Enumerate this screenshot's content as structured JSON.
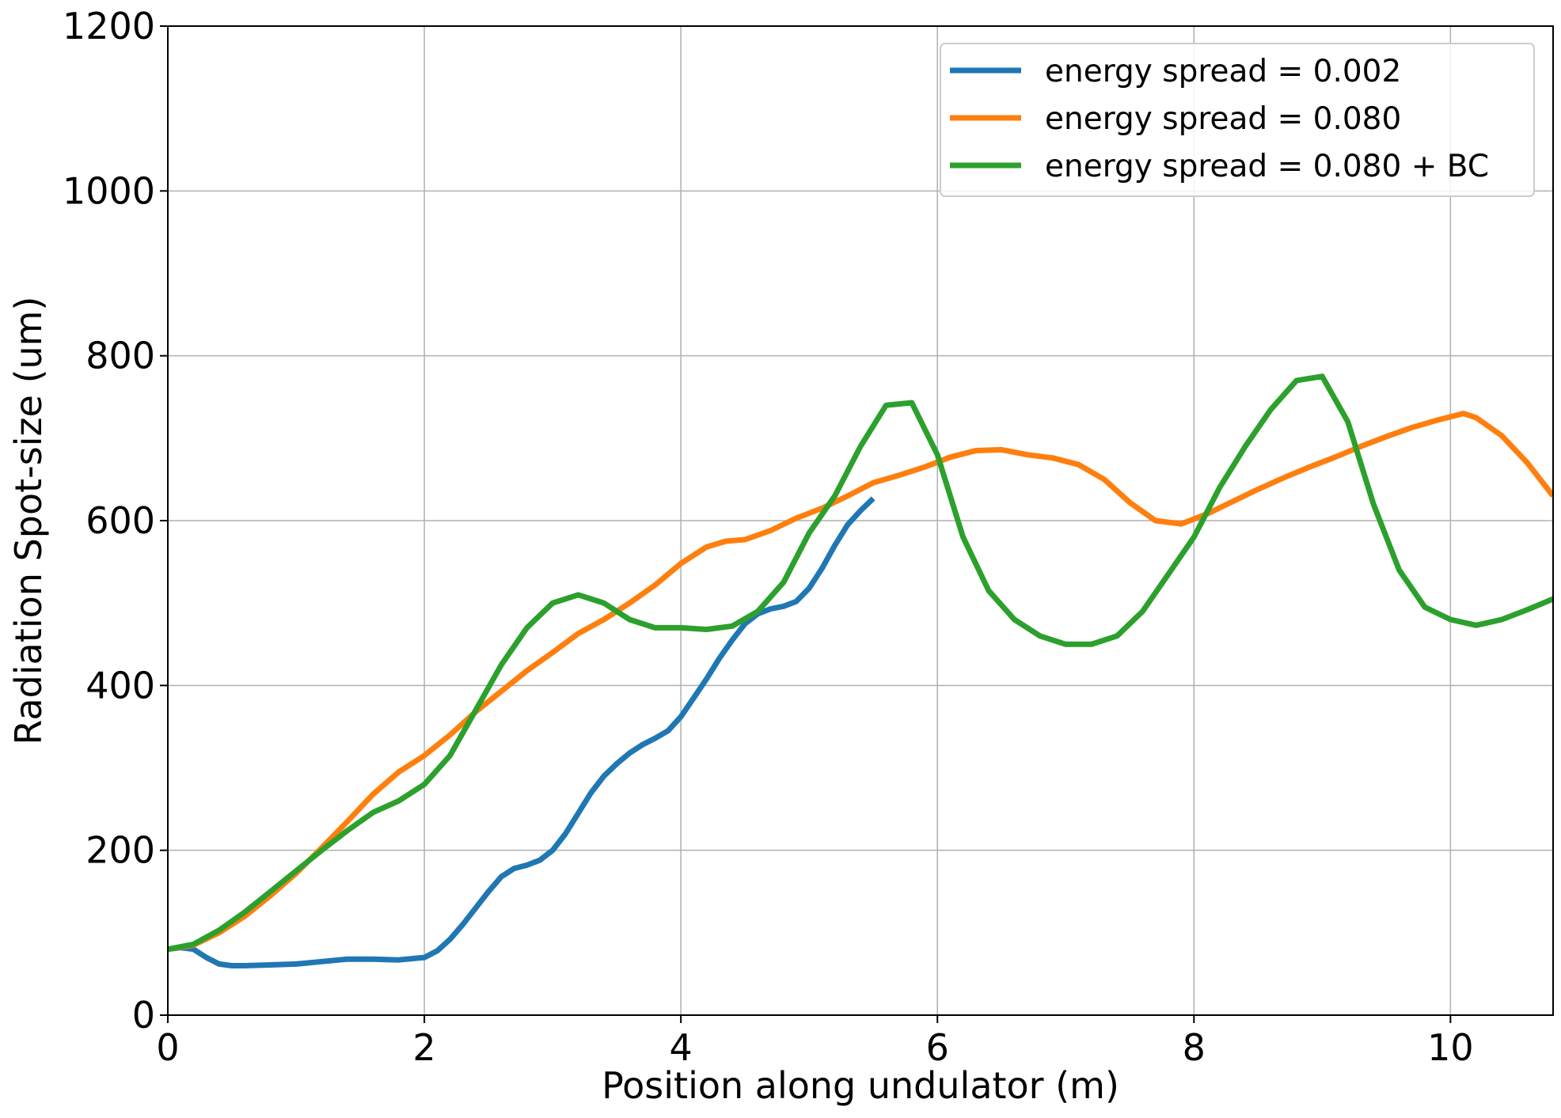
{
  "chart_data": {
    "type": "line",
    "title": "",
    "xlabel": "Position along undulator (m)",
    "ylabel": "Radiation Spot-size (um)",
    "xlim": [
      0,
      10.8
    ],
    "ylim": [
      0,
      1200
    ],
    "xticks": [
      0,
      2,
      4,
      6,
      8,
      10
    ],
    "yticks": [
      0,
      200,
      400,
      600,
      800,
      1000,
      1200
    ],
    "xtick_labels": [
      "0",
      "2",
      "4",
      "6",
      "8",
      "10"
    ],
    "ytick_labels": [
      "0",
      "200",
      "400",
      "600",
      "800",
      "1000",
      "1200"
    ],
    "grid": true,
    "legend_position": "top-right",
    "series": [
      {
        "name": "energy spread = 0.002",
        "color": "#1f77b4",
        "x": [
          0,
          0.1,
          0.2,
          0.3,
          0.4,
          0.5,
          0.6,
          0.8,
          1.0,
          1.2,
          1.4,
          1.6,
          1.8,
          2.0,
          2.1,
          2.2,
          2.3,
          2.4,
          2.5,
          2.6,
          2.7,
          2.8,
          2.9,
          3.0,
          3.1,
          3.2,
          3.3,
          3.4,
          3.5,
          3.6,
          3.7,
          3.8,
          3.9,
          4.0,
          4.1,
          4.2,
          4.3,
          4.4,
          4.5,
          4.6,
          4.7,
          4.8,
          4.9,
          5.0,
          5.1,
          5.2,
          5.3,
          5.4,
          5.5
        ],
        "y": [
          80,
          82,
          80,
          70,
          62,
          60,
          60,
          61,
          62,
          65,
          68,
          68,
          67,
          70,
          78,
          92,
          110,
          130,
          150,
          168,
          178,
          182,
          188,
          200,
          220,
          245,
          270,
          290,
          305,
          318,
          328,
          336,
          345,
          362,
          385,
          408,
          433,
          455,
          475,
          487,
          493,
          496,
          502,
          518,
          542,
          570,
          595,
          612,
          627
        ]
      },
      {
        "name": "energy spread = 0.080",
        "color": "#ff7f0e",
        "x": [
          0,
          0.2,
          0.4,
          0.6,
          0.8,
          1.0,
          1.2,
          1.4,
          1.6,
          1.8,
          2.0,
          2.2,
          2.4,
          2.6,
          2.8,
          3.0,
          3.2,
          3.4,
          3.6,
          3.8,
          4.0,
          4.2,
          4.35,
          4.5,
          4.7,
          4.9,
          5.1,
          5.3,
          5.5,
          5.7,
          5.9,
          6.1,
          6.3,
          6.5,
          6.7,
          6.9,
          7.1,
          7.3,
          7.5,
          7.7,
          7.9,
          8.1,
          8.3,
          8.5,
          8.7,
          8.9,
          9.1,
          9.3,
          9.5,
          9.7,
          9.9,
          10.1,
          10.2,
          10.4,
          10.6,
          10.8
        ],
        "y": [
          80,
          85,
          100,
          120,
          145,
          172,
          203,
          235,
          268,
          295,
          315,
          340,
          368,
          393,
          418,
          440,
          463,
          480,
          500,
          522,
          548,
          568,
          575,
          577,
          588,
          603,
          615,
          630,
          646,
          655,
          665,
          677,
          685,
          686,
          680,
          676,
          668,
          650,
          622,
          600,
          596,
          608,
          623,
          638,
          652,
          665,
          677,
          690,
          702,
          713,
          722,
          730,
          725,
          703,
          670,
          630
        ]
      },
      {
        "name": "energy spread = 0.080 + BC",
        "color": "#2ca02c",
        "x": [
          0,
          0.2,
          0.4,
          0.6,
          0.8,
          1.0,
          1.2,
          1.4,
          1.6,
          1.8,
          2.0,
          2.2,
          2.4,
          2.6,
          2.8,
          3.0,
          3.2,
          3.4,
          3.6,
          3.8,
          4.0,
          4.2,
          4.4,
          4.6,
          4.8,
          5.0,
          5.2,
          5.4,
          5.6,
          5.8,
          6.0,
          6.2,
          6.4,
          6.6,
          6.8,
          7.0,
          7.2,
          7.4,
          7.6,
          7.8,
          8.0,
          8.2,
          8.4,
          8.6,
          8.8,
          9.0,
          9.2,
          9.4,
          9.6,
          9.8,
          10.0,
          10.2,
          10.4,
          10.6,
          10.8
        ],
        "y": [
          80,
          86,
          103,
          125,
          150,
          175,
          200,
          224,
          246,
          260,
          280,
          315,
          370,
          425,
          470,
          500,
          510,
          500,
          480,
          470,
          470,
          468,
          472,
          490,
          525,
          585,
          630,
          690,
          740,
          743,
          680,
          580,
          515,
          480,
          460,
          450,
          450,
          460,
          490,
          535,
          580,
          640,
          690,
          735,
          770,
          775,
          720,
          620,
          540,
          495,
          480,
          473,
          480,
          492,
          505
        ]
      }
    ]
  }
}
